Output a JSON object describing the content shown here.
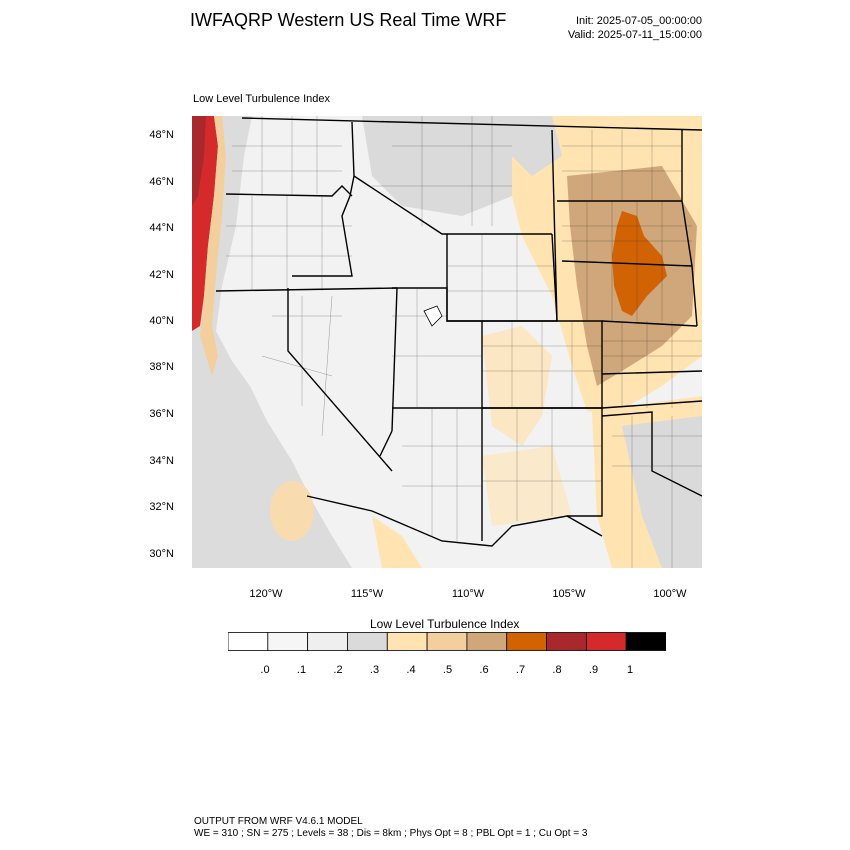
{
  "header": {
    "title": "IWFAQRP Western US Real Time WRF",
    "init": "Init: 2025-07-05_00:00:00",
    "valid": "Valid: 2025-07-11_15:00:00"
  },
  "panel": {
    "subtitle": "Low Level Turbulence Index"
  },
  "map": {
    "lat_labels": [
      "48°N",
      "46°N",
      "44°N",
      "42°N",
      "40°N",
      "38°N",
      "36°N",
      "34°N",
      "32°N",
      "30°N"
    ],
    "lon_labels": [
      "120°W",
      "115°W",
      "110°W",
      "105°W",
      "100°W"
    ],
    "colors": {
      "land_base": "#f4f4f4",
      "ocean": "#e2e2e2",
      "border": "#000000"
    }
  },
  "colorbar": {
    "title": "Low Level Turbulence Index",
    "colors": [
      "#ffffff",
      "#f6f6f6",
      "#efefef",
      "#dadada",
      "#ffe3b1",
      "#f3cf9e",
      "#cfa77a",
      "#d26304",
      "#a9282b",
      "#d52a2c",
      "#000000"
    ],
    "labels": [
      ".0",
      ".1",
      ".2",
      ".3",
      ".4",
      ".5",
      ".6",
      ".7",
      ".8",
      ".9",
      "1"
    ]
  },
  "footer": {
    "line1": "OUTPUT FROM WRF V4.6.1 MODEL",
    "line2": "WE = 310 ; SN = 275 ; Levels = 38 ; Dis = 8km ; Phys Opt = 8 ; PBL Opt = 1 ; Cu Opt = 3"
  }
}
